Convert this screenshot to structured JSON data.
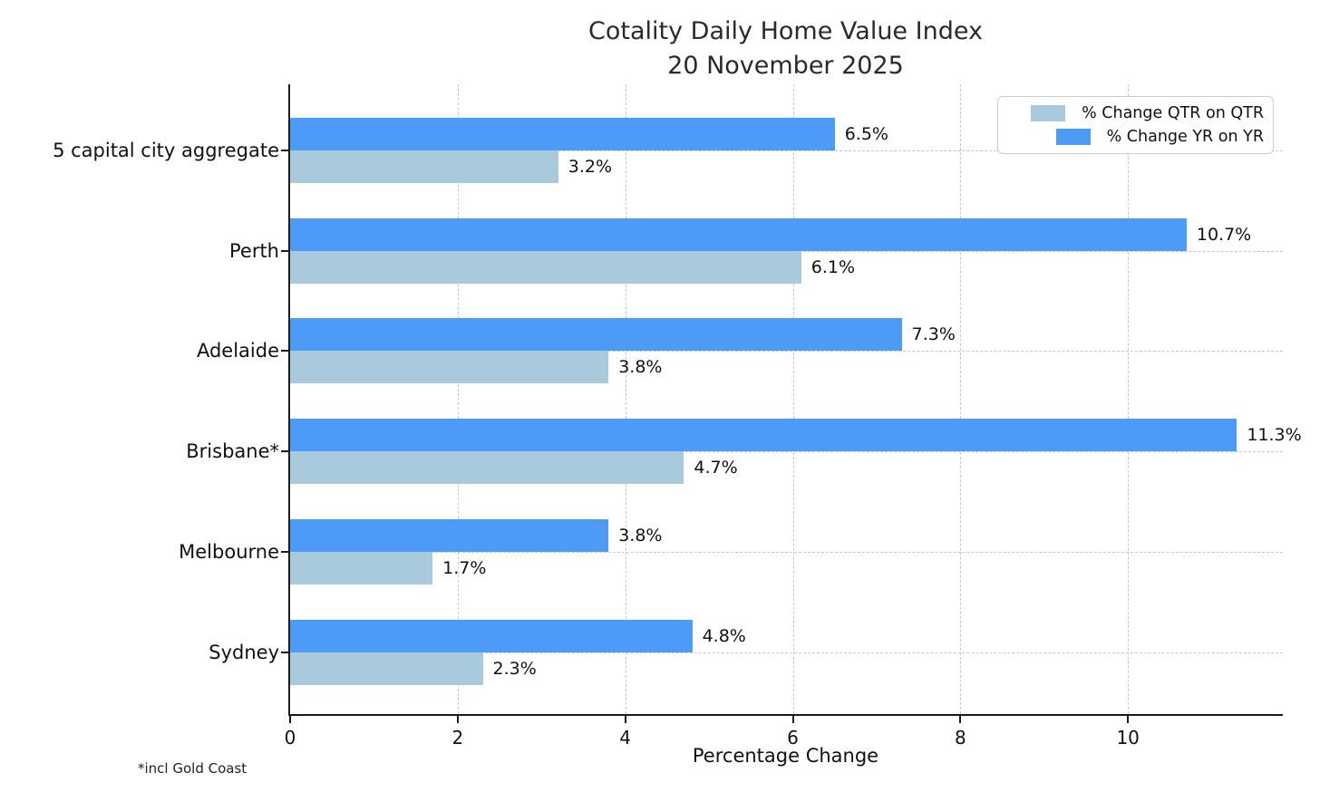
{
  "chart_data": {
    "type": "bar",
    "orientation": "horizontal",
    "title": "Cotality Daily Home Value Index",
    "subtitle": "20 November 2025",
    "xlabel": "Percentage Change",
    "footnote": "*incl Gold Coast",
    "categories": [
      "5 capital city aggregate",
      "Perth",
      "Adelaide",
      "Brisbane*",
      "Melbourne",
      "Sydney"
    ],
    "series": [
      {
        "name": "% Change QTR on QTR",
        "color": "#a8cadc",
        "values": [
          3.2,
          6.1,
          3.8,
          4.7,
          1.7,
          2.3
        ]
      },
      {
        "name": "% Change YR on YR",
        "color": "#4d9af7",
        "values": [
          6.5,
          10.7,
          7.3,
          11.3,
          3.8,
          4.8
        ]
      }
    ],
    "value_label_suffix": "%",
    "xlim": [
      0,
      11.87
    ],
    "xticks": [
      0,
      2,
      4,
      6,
      8,
      10
    ],
    "grid": "dashed, both axes, behind bars",
    "legend_position": "upper right",
    "axis_color": "#1a1a1a",
    "grid_color": "#c6c6c6"
  }
}
